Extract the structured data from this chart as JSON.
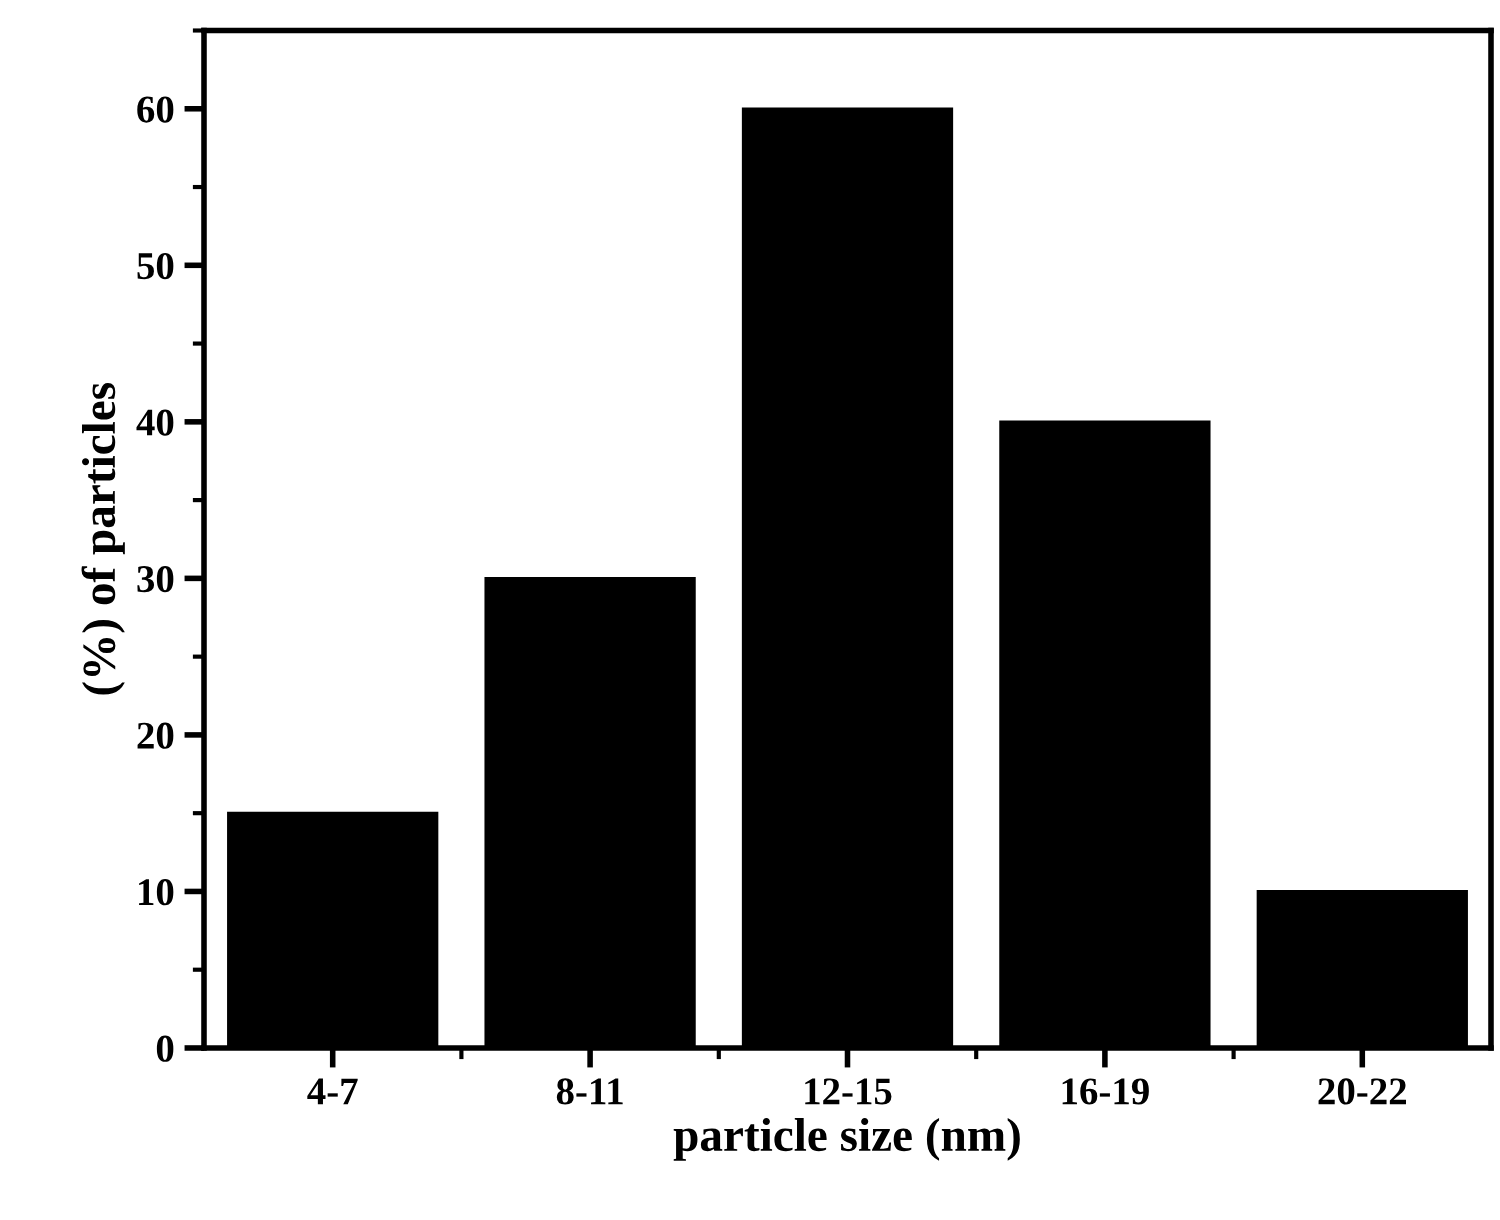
{
  "chart_data": {
    "type": "bar",
    "xlabel": "particle size (nm)",
    "ylabel": "(%) of particles",
    "categories": [
      "4-7",
      "8-11",
      "12-15",
      "16-19",
      "20-22"
    ],
    "values": [
      15,
      30,
      60,
      40,
      10
    ],
    "color": "#000000",
    "ylim": [
      0,
      65
    ],
    "yticks": [
      0,
      10,
      20,
      30,
      40,
      50,
      60
    ],
    "grid": false
  }
}
